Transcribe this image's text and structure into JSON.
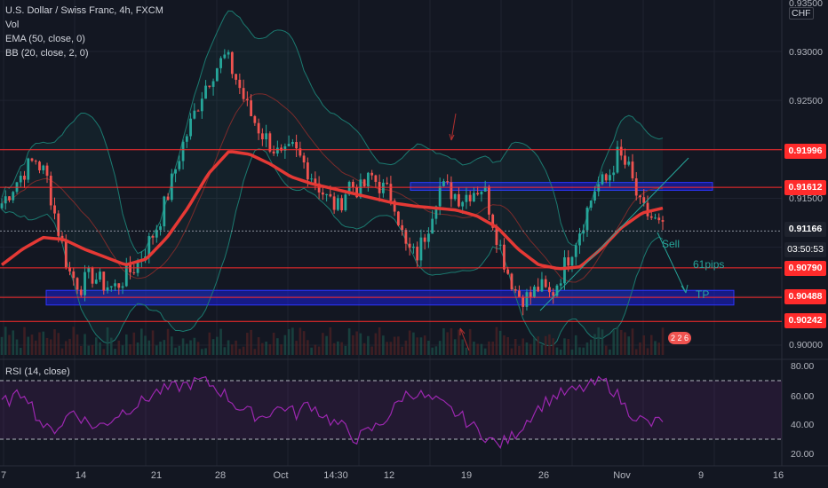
{
  "header": {
    "symbol_line": "U.S. Dollar / Swiss Franc, 4h, FXCM",
    "vol_label": "Vol",
    "ema_label": "EMA (50, close, 0)",
    "bb_label": "BB (20, close, 2, 0)",
    "rsi_label": "RSI (14, close)",
    "currency": "CHF"
  },
  "colors": {
    "background": "#131722",
    "up": "#26a69a",
    "down": "#ef5350",
    "ema": "#e53935",
    "zone": "#1a1fd8",
    "level": "#ff2b2b",
    "rsi": "#9c27b0"
  },
  "price_axis": {
    "labels": [
      "0.93000",
      "0.92500",
      "0.91500",
      "0.90000"
    ],
    "tags": [
      {
        "text": "0.91996",
        "color": "#ff2b2b"
      },
      {
        "text": "0.91612",
        "color": "#ff2b2b"
      },
      {
        "text": "0.91166",
        "color": "#1e222d"
      },
      {
        "text": "03:50:53",
        "color": "#1e222d"
      },
      {
        "text": "0.90790",
        "color": "#ff2b2b"
      },
      {
        "text": "0.90488",
        "color": "#ff2b2b"
      },
      {
        "text": "0.90242",
        "color": "#ff2b2b"
      }
    ]
  },
  "x_axis": {
    "labels": [
      "7",
      "14",
      "21",
      "28",
      "Oct",
      "14:30",
      "12",
      "19",
      "26",
      "Nov",
      "9",
      "16"
    ]
  },
  "rsi_axis": {
    "labels": [
      "80.00",
      "60.00",
      "40.00",
      "20.00"
    ]
  },
  "annotations": {
    "sell": "Sell",
    "pips": "61pips",
    "tp": "TP",
    "badge": "2 2 6"
  },
  "chart_data": {
    "type": "candlestick",
    "y_axis_range": [
      0.898,
      0.935
    ],
    "horizontal_levels": [
      0.91996,
      0.91612,
      0.9079,
      0.90488,
      0.90242
    ],
    "last_price": 0.91166,
    "zones": [
      {
        "name": "resistance-zone",
        "from": 0.91582,
        "to": 0.91662
      },
      {
        "name": "support-zone",
        "from": 0.9041,
        "to": 0.9056
      }
    ],
    "close_path": [
      0.9145,
      0.9162,
      0.9178,
      0.919,
      0.9172,
      0.912,
      0.9075,
      0.906,
      0.9072,
      0.9063,
      0.9058,
      0.907,
      0.9082,
      0.9102,
      0.9125,
      0.916,
      0.92,
      0.923,
      0.9262,
      0.9282,
      0.9295,
      0.927,
      0.924,
      0.922,
      0.9205,
      0.919,
      0.92,
      0.9185,
      0.9168,
      0.915,
      0.914,
      0.9165,
      0.9158,
      0.9172,
      0.916,
      0.915,
      0.91,
      0.909,
      0.912,
      0.9162,
      0.9158,
      0.915,
      0.9158,
      0.9162,
      0.912,
      0.908,
      0.9052,
      0.9048,
      0.906,
      0.905,
      0.9075,
      0.9102,
      0.913,
      0.9162,
      0.9168,
      0.9195,
      0.9178,
      0.914,
      0.913,
      0.9117
    ],
    "ema_path": [
      0.9082,
      0.9098,
      0.911,
      0.9108,
      0.9098,
      0.909,
      0.9082,
      0.9088,
      0.911,
      0.914,
      0.9175,
      0.9198,
      0.9195,
      0.9185,
      0.9172,
      0.9165,
      0.916,
      0.9155,
      0.915,
      0.9145,
      0.9142,
      0.914,
      0.9138,
      0.9132,
      0.912,
      0.9098,
      0.9082,
      0.9078,
      0.908,
      0.9098,
      0.912,
      0.9135,
      0.914
    ],
    "rsi": {
      "levels": [
        70,
        30
      ],
      "range": [
        15,
        82
      ],
      "values": [
        55,
        58,
        63,
        45,
        35,
        40,
        50,
        43,
        38,
        42,
        48,
        52,
        56,
        62,
        64,
        66,
        68,
        70,
        66,
        60,
        52,
        48,
        45,
        50,
        52,
        47,
        55,
        48,
        42,
        38,
        30,
        35,
        40,
        48,
        60,
        62,
        58,
        55,
        50,
        45,
        38,
        32,
        26,
        30,
        38,
        48,
        55,
        60,
        62,
        64,
        67,
        70,
        62,
        50,
        44,
        40,
        44
      ]
    }
  }
}
